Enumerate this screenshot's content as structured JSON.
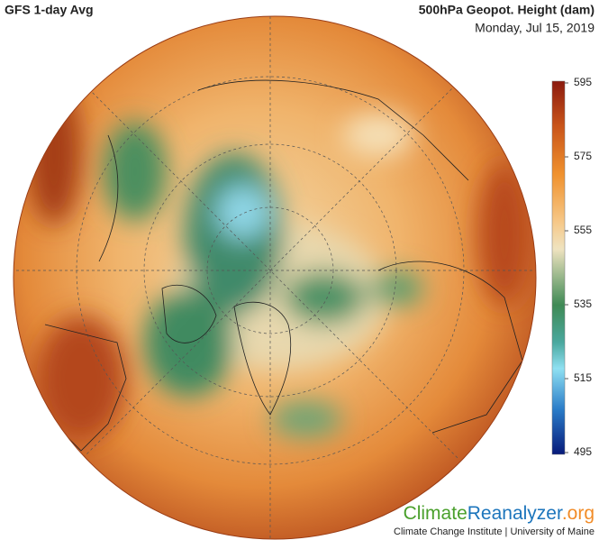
{
  "header": {
    "left": "GFS 1-day Avg",
    "title": "500hPa Geopot. Height (dam)",
    "date": "Monday, Jul 15, 2019"
  },
  "colorbar": {
    "ticks": [
      595,
      575,
      555,
      535,
      515,
      495
    ]
  },
  "footer": {
    "logo": [
      "Climate",
      "Reanalyzer",
      ".org"
    ],
    "credit": "Climate Change Institute | University of Maine"
  }
}
